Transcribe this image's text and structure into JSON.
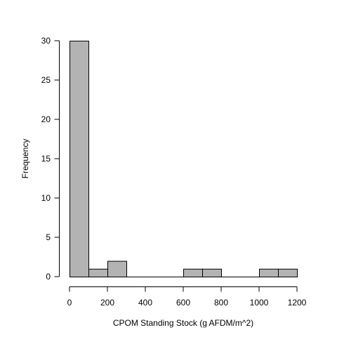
{
  "chart_data": {
    "type": "bar",
    "title": "",
    "xlabel": "CPOM Standing Stock (g AFDM/m^2)",
    "ylabel": "Frequency",
    "bins": [
      {
        "x0": 0,
        "x1": 100,
        "count": 30
      },
      {
        "x0": 100,
        "x1": 200,
        "count": 1
      },
      {
        "x0": 200,
        "x1": 300,
        "count": 2
      },
      {
        "x0": 300,
        "x1": 400,
        "count": 0
      },
      {
        "x0": 400,
        "x1": 500,
        "count": 0
      },
      {
        "x0": 500,
        "x1": 600,
        "count": 0
      },
      {
        "x0": 600,
        "x1": 700,
        "count": 1
      },
      {
        "x0": 700,
        "x1": 800,
        "count": 1
      },
      {
        "x0": 800,
        "x1": 900,
        "count": 0
      },
      {
        "x0": 900,
        "x1": 1000,
        "count": 0
      },
      {
        "x0": 1000,
        "x1": 1100,
        "count": 1
      },
      {
        "x0": 1100,
        "x1": 1200,
        "count": 1
      }
    ],
    "xlim": [
      0,
      1200
    ],
    "ylim": [
      0,
      30
    ],
    "x_ticks": [
      0,
      200,
      400,
      600,
      800,
      1000,
      1200
    ],
    "y_ticks": [
      0,
      5,
      10,
      15,
      20,
      25,
      30
    ],
    "bar_color": "#b3b3b3",
    "grid": false,
    "legend": "none"
  }
}
